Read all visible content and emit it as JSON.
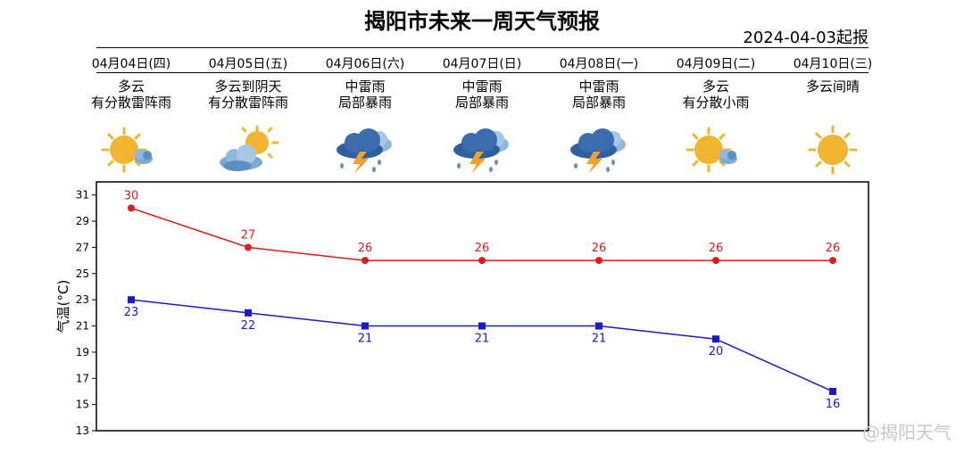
{
  "header": {
    "title": "揭阳市未来一周天气预报",
    "issued": "2024-04-03起报"
  },
  "days": [
    {
      "date": "04月04日(四)",
      "desc": "多云\n有分散雷阵雨",
      "icon": "partly-cloudy-sun-icon"
    },
    {
      "date": "04月05日(五)",
      "desc": "多云到阴天\n有分散雷阵雨",
      "icon": "cloudy-sun-icon"
    },
    {
      "date": "04月06日(六)",
      "desc": "中雷雨\n局部暴雨",
      "icon": "thunderstorm-icon"
    },
    {
      "date": "04月07日(日)",
      "desc": "中雷雨\n局部暴雨",
      "icon": "thunderstorm-icon"
    },
    {
      "date": "04月08日(一)",
      "desc": "中雷雨\n局部暴雨",
      "icon": "thunderstorm-icon"
    },
    {
      "date": "04月09日(二)",
      "desc": "多云\n有分散小雨",
      "icon": "partly-cloudy-sun-icon"
    },
    {
      "date": "04月10日(三)",
      "desc": "多云间晴",
      "icon": "sun-icon"
    }
  ],
  "chart_data": {
    "type": "line",
    "title": "",
    "xlabel": "",
    "ylabel": "气温(°C)",
    "ylim": [
      13,
      32
    ],
    "yticks": [
      "13",
      "15",
      "17",
      "19",
      "21",
      "23",
      "25",
      "27",
      "29",
      "31"
    ],
    "grid": false,
    "series": [
      {
        "values": [
          30,
          27,
          26,
          26,
          26,
          26,
          26
        ],
        "labels": [
          "30",
          "27",
          "26",
          "26",
          "26",
          "26",
          "26"
        ],
        "color": "#e01b1b",
        "marker": "circle"
      },
      {
        "values": [
          23,
          22,
          21,
          21,
          21,
          20,
          16
        ],
        "labels": [
          "23",
          "22",
          "21",
          "21",
          "21",
          "20",
          "16"
        ],
        "color": "#1a1acc",
        "marker": "square"
      }
    ]
  },
  "watermark": "@揭阳天气"
}
